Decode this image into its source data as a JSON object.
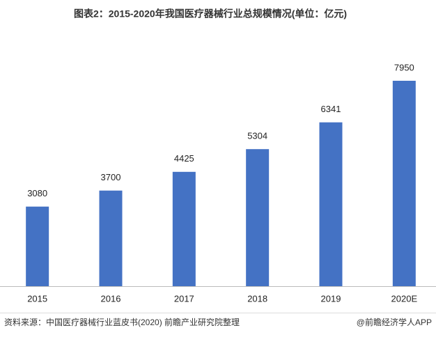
{
  "chart_data": {
    "type": "bar",
    "title": "图表2：2015-2020年我国医疗器械行业总规模情况(单位：亿元)",
    "categories": [
      "2015",
      "2016",
      "2017",
      "2018",
      "2019",
      "2020E"
    ],
    "values": [
      3080,
      3700,
      4425,
      5304,
      6341,
      7950
    ],
    "color": "#4472c4",
    "source": "资料来源：中国医疗器械行业蓝皮书(2020) 前瞻产业研究院整理",
    "credit": "@前瞻经济学人APP"
  }
}
